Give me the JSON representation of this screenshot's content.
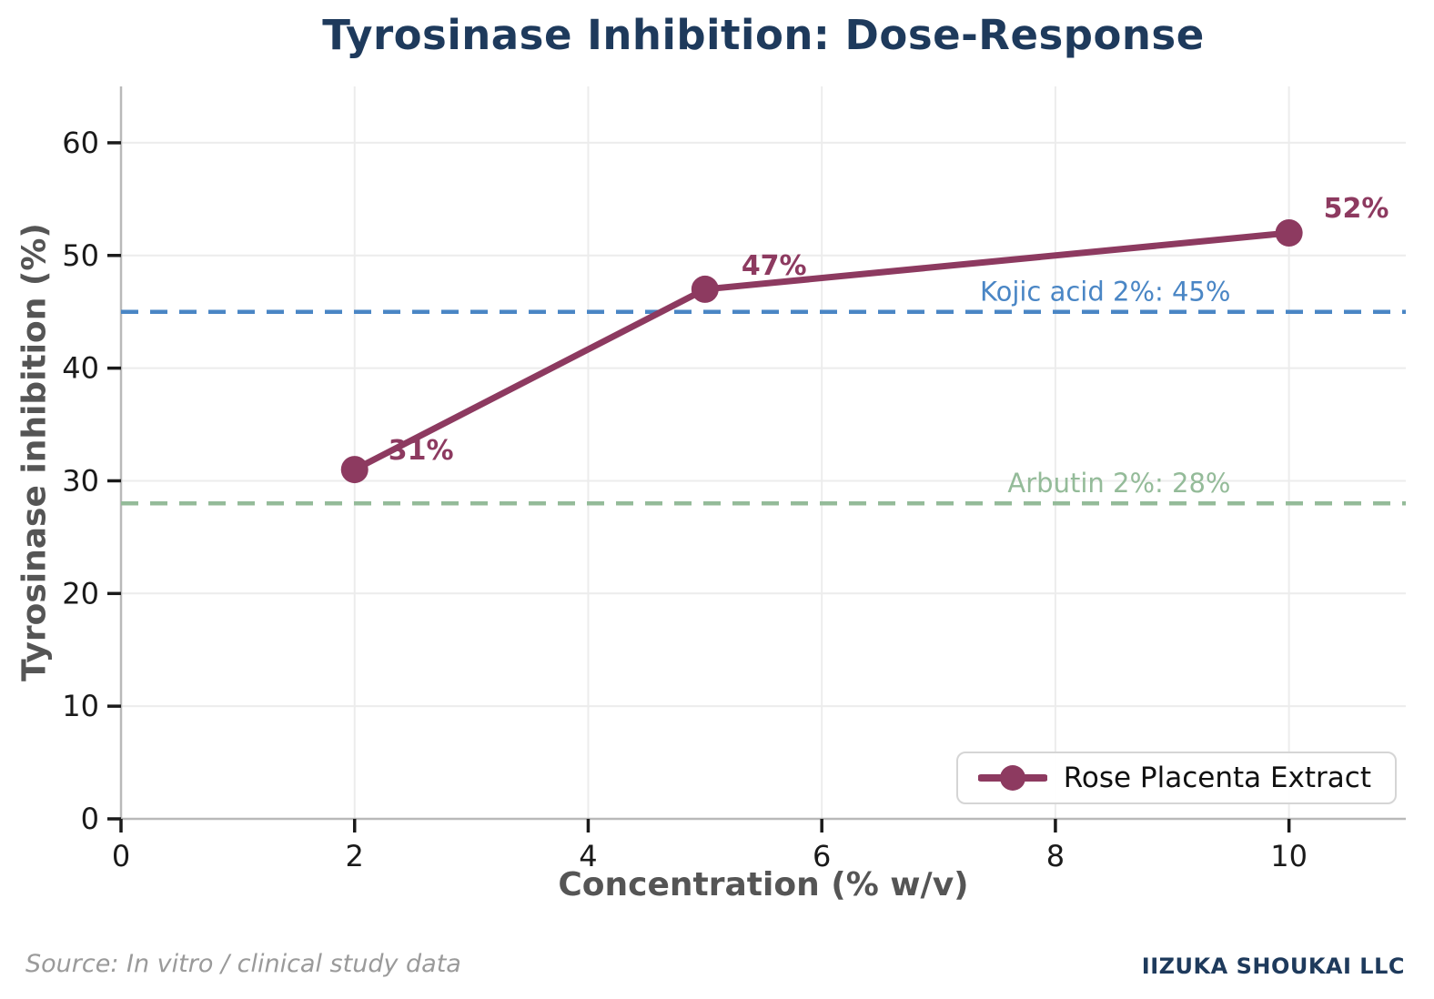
{
  "title": "Tyrosinase Inhibition: Dose-Response",
  "footer": {
    "source": "Source: In vitro / clinical study data",
    "brand": "IIZUKA SHOUKAI LLC"
  },
  "colors": {
    "title_navy": "#1e3a5c",
    "series_maroon": "#8d3a60",
    "kojic_blue": "#4a86c5",
    "arbutin_green": "#94bb99",
    "axis_label_gray": "#555555",
    "tick_label_dark": "#1a1a1a",
    "gridline_gray": "#ececec",
    "spine_gray": "#b9b9b9",
    "source_gray": "#9a9a9a"
  },
  "chart_data": {
    "type": "line",
    "title": "Tyrosinase Inhibition: Dose-Response",
    "xlabel": "Concentration (% w/v)",
    "ylabel": "Tyrosinase inhibition (%)",
    "xlim": [
      0,
      11
    ],
    "ylim": [
      0,
      65
    ],
    "xticks": [
      0,
      2,
      4,
      6,
      8,
      10
    ],
    "yticks": [
      0,
      10,
      20,
      30,
      40,
      50,
      60
    ],
    "grid": true,
    "legend_position": "lower right",
    "series": [
      {
        "name": "Rose Placenta Extract",
        "color": "#8d3a60",
        "x": [
          2,
          5,
          10
        ],
        "y": [
          31,
          47,
          52
        ],
        "point_labels": [
          "31%",
          "47%",
          "52%"
        ]
      }
    ],
    "reference_lines": [
      {
        "label": "Kojic acid 2%: 45%",
        "y": 45,
        "color": "#4a86c5",
        "style": "dashed",
        "label_x": 9.5
      },
      {
        "label": "Arbutin 2%: 28%",
        "y": 28,
        "color": "#94bb99",
        "style": "dashed",
        "label_x": 9.5
      }
    ]
  }
}
